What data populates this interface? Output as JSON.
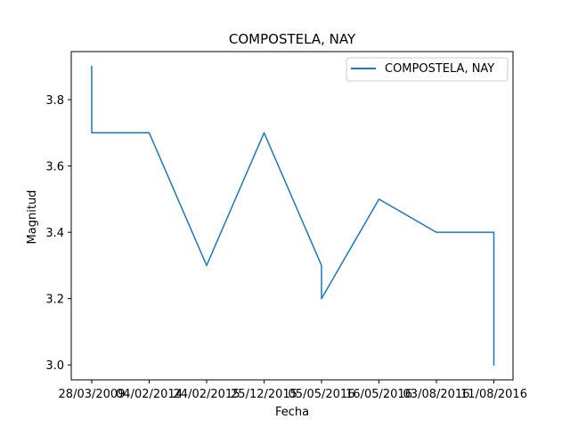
{
  "chart_data": {
    "type": "line",
    "title": "COMPOSTELA, NAY",
    "xlabel": "Fecha",
    "ylabel": "Magnitud",
    "categories": [
      "28/03/2009",
      "04/02/2014",
      "24/02/2015",
      "25/12/2015",
      "05/05/2016",
      "16/05/2016",
      "03/08/2016",
      "11/08/2016"
    ],
    "series": [
      {
        "name": "COMPOSTELA, NAY",
        "color": "#1f77b4",
        "points": [
          {
            "x": "28/03/2009",
            "y": 3.9
          },
          {
            "x": "28/03/2009",
            "y": 3.7
          },
          {
            "x": "04/02/2014",
            "y": 3.7
          },
          {
            "x": "24/02/2015",
            "y": 3.3
          },
          {
            "x": "25/12/2015",
            "y": 3.7
          },
          {
            "x": "05/05/2016",
            "y": 3.3
          },
          {
            "x": "05/05/2016",
            "y": 3.2
          },
          {
            "x": "16/05/2016",
            "y": 3.5
          },
          {
            "x": "03/08/2016",
            "y": 3.4
          },
          {
            "x": "11/08/2016",
            "y": 3.4
          },
          {
            "x": "11/08/2016",
            "y": 3.0
          },
          {
            "x": "11/08/2016",
            "y": 3.2
          },
          {
            "x": "11/08/2016",
            "y": 3.0
          }
        ]
      }
    ],
    "yticks": [
      "3.0",
      "3.2",
      "3.4",
      "3.6",
      "3.8"
    ],
    "ylim": [
      2.955,
      3.945
    ],
    "legend_position": "upper right",
    "grid": false
  }
}
